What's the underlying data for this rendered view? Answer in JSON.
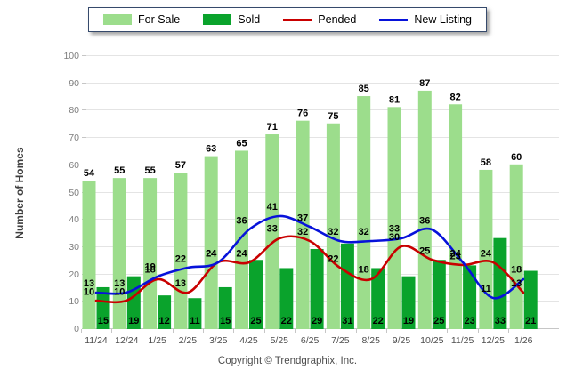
{
  "legend": {
    "items": [
      {
        "label": "For Sale",
        "type": "bar",
        "color": "#9cdd8c"
      },
      {
        "label": "Sold",
        "type": "bar",
        "color": "#0aa32c"
      },
      {
        "label": "Pended",
        "type": "line",
        "color": "#c90000"
      },
      {
        "label": "New Listing",
        "type": "line",
        "color": "#0712da"
      }
    ]
  },
  "chart_data": {
    "type": "bar",
    "categories": [
      "11/24",
      "12/24",
      "1/25",
      "2/25",
      "3/25",
      "4/25",
      "5/25",
      "6/25",
      "7/25",
      "8/25",
      "9/25",
      "10/25",
      "11/25",
      "12/25",
      "1/26"
    ],
    "series": [
      {
        "name": "For Sale",
        "type": "bar",
        "color": "#9cdd8c",
        "values": [
          54,
          55,
          55,
          57,
          63,
          65,
          71,
          76,
          75,
          85,
          81,
          87,
          82,
          58,
          60
        ]
      },
      {
        "name": "Sold",
        "type": "bar",
        "color": "#0aa32c",
        "values": [
          15,
          19,
          12,
          11,
          15,
          25,
          22,
          29,
          31,
          22,
          19,
          25,
          23,
          33,
          21
        ]
      },
      {
        "name": "Pended",
        "type": "line",
        "color": "#c90000",
        "values": [
          10,
          10,
          18,
          13,
          24,
          24,
          33,
          32,
          22,
          18,
          30,
          25,
          23,
          24,
          13
        ]
      },
      {
        "name": "New Listing",
        "type": "line",
        "color": "#0712da",
        "values": [
          13,
          13,
          19,
          22,
          24,
          36,
          41,
          37,
          32,
          32,
          33,
          36,
          24,
          11,
          18
        ]
      }
    ],
    "title": "",
    "xlabel": "",
    "ylabel": "Number of Homes",
    "ylim": [
      0,
      100
    ],
    "ytick_step": 10,
    "grid": true,
    "legend_position": "top-center"
  },
  "footer": {
    "copyright": "Copyright © Trendgraphix, Inc."
  }
}
